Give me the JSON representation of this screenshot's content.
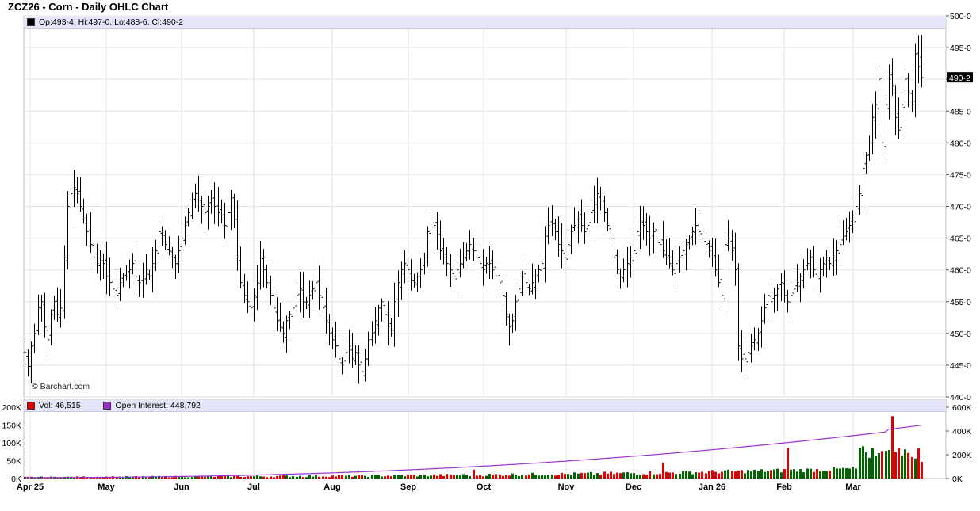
{
  "title": "ZCZ26 - Corn - Daily OHLC Chart",
  "ohlc_readout": "Op:493-4, Hi:497-0, Lo:488-6, Cl:490-2",
  "last_price_label": "490-2",
  "watermark": "© Barchart.com",
  "volume_legend": "Vol: 46,515",
  "oi_legend": "Open Interest: 448,792",
  "colors": {
    "price_bar": "#000000",
    "volume_up": "#006400",
    "volume_down": "#e00000",
    "open_interest": "#9932cc",
    "info_bar_bg": "#e6e6fa"
  },
  "chart_data": [
    {
      "type": "ohlc",
      "symbol": "ZCZ26",
      "y_ticks": [
        "440-0",
        "445-0",
        "450-0",
        "455-0",
        "460-0",
        "465-0",
        "470-0",
        "475-0",
        "480-0",
        "485-0",
        "490-0",
        "495-0",
        "500-0"
      ],
      "ylim": [
        440,
        500
      ],
      "x_ticks": [
        "Apr 25",
        "May",
        "Jun",
        "Jul",
        "Aug",
        "Sep",
        "Oct",
        "Nov",
        "Dec",
        "Jan 26",
        "Feb",
        "Mar"
      ],
      "last": {
        "open": 493.5,
        "high": 497.0,
        "low": 488.75,
        "close": 490.25
      },
      "grid": true,
      "closes": [
        447,
        444.8,
        448,
        450,
        454,
        455,
        451,
        449,
        453,
        455,
        453,
        454,
        462,
        470,
        472,
        473,
        472,
        470,
        468,
        466,
        464,
        462,
        461,
        462,
        461,
        459,
        458,
        457,
        456,
        458,
        459,
        459,
        460,
        461,
        459,
        458,
        459,
        460,
        459,
        461,
        463,
        466,
        465,
        464,
        463,
        462,
        461,
        463,
        465,
        467,
        469,
        471,
        472,
        471,
        470,
        469,
        470,
        471,
        470,
        469,
        468,
        467,
        469,
        471,
        468,
        462,
        458,
        456,
        455,
        454,
        456,
        458,
        462,
        460,
        458,
        456,
        454,
        452,
        451,
        450,
        452,
        453,
        454,
        456,
        457,
        455,
        455,
        456,
        457,
        458,
        456,
        454,
        452,
        450,
        449,
        448,
        446,
        445,
        447,
        448,
        446,
        447,
        445,
        444,
        446,
        449,
        450,
        452,
        454,
        455,
        453,
        451,
        450,
        455,
        458,
        460,
        461,
        460,
        459,
        458,
        459,
        460,
        462,
        466,
        468,
        467,
        465,
        463,
        462,
        461,
        460,
        459,
        460,
        461,
        462,
        463,
        464,
        463,
        462,
        461,
        460,
        461,
        461,
        460,
        459,
        458,
        456,
        453,
        451,
        452,
        455,
        457,
        459,
        458,
        457,
        458,
        459,
        460,
        461,
        465,
        467,
        468,
        466,
        464,
        463,
        462,
        464,
        466,
        467,
        468,
        467,
        466,
        467,
        469,
        471,
        472,
        471,
        469,
        467,
        465,
        462,
        460,
        459,
        460,
        461,
        462,
        463,
        466,
        468,
        467,
        466,
        465,
        466,
        465,
        464,
        463,
        462,
        461,
        460,
        461,
        462,
        463,
        464,
        465,
        466,
        467,
        466,
        465,
        464,
        463,
        462,
        460,
        458,
        456,
        464,
        465,
        463,
        460,
        448,
        446,
        446,
        447,
        448,
        449,
        450,
        452,
        454,
        456,
        455,
        456,
        457,
        458,
        456,
        455,
        456,
        457,
        458,
        459,
        460,
        461,
        462,
        460,
        459,
        460,
        461,
        462,
        461,
        462,
        463,
        464,
        465,
        466,
        467,
        468,
        470,
        472,
        476,
        478,
        480,
        484,
        486,
        490,
        480,
        486,
        490,
        489,
        484,
        482,
        486,
        490,
        488,
        486,
        494,
        492,
        490.25
      ]
    },
    {
      "type": "bar",
      "name": "Volume / Open Interest",
      "left_ticks": [
        "0K",
        "50K",
        "100K",
        "150K",
        "200K"
      ],
      "right_ticks": [
        "0K",
        "200K",
        "400K",
        "600K"
      ],
      "volume_last": 46515,
      "open_interest_last": 448792,
      "volume_ylim": [
        0,
        200000
      ],
      "oi_ylim": [
        0,
        600000
      ],
      "volume_peak": 175000
    }
  ]
}
